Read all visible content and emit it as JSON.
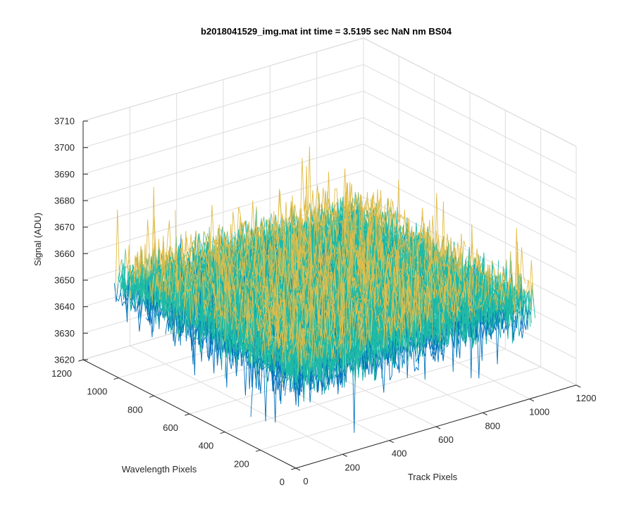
{
  "chart_data": {
    "type": "surface-3d",
    "title": "b2018041529_img.mat int time = 3.5195 sec  NaN nm BS04",
    "xlabel": "Track Pixels",
    "ylabel": "Wavelength Pixels",
    "zlabel": "Signal (ADU)",
    "xlim": [
      0,
      1200
    ],
    "ylim": [
      0,
      1200
    ],
    "zlim": [
      3620,
      3710
    ],
    "xticks": [
      0,
      200,
      400,
      600,
      800,
      1000,
      1200
    ],
    "yticks": [
      0,
      200,
      400,
      600,
      800,
      1000,
      1200
    ],
    "zticks": [
      3620,
      3630,
      3640,
      3650,
      3660,
      3670,
      3680,
      3690,
      3700,
      3710
    ],
    "x_extent": [
      0,
      1024
    ],
    "y_extent": [
      0,
      1024
    ],
    "signal_mean": 3655,
    "signal_noise_std": 8,
    "grid": true,
    "colors": {
      "low": "#0072bd",
      "mid": "#1ebba7",
      "high": "#e2bd4a",
      "axis": "#262626",
      "grid": "#dcdcdc"
    }
  }
}
